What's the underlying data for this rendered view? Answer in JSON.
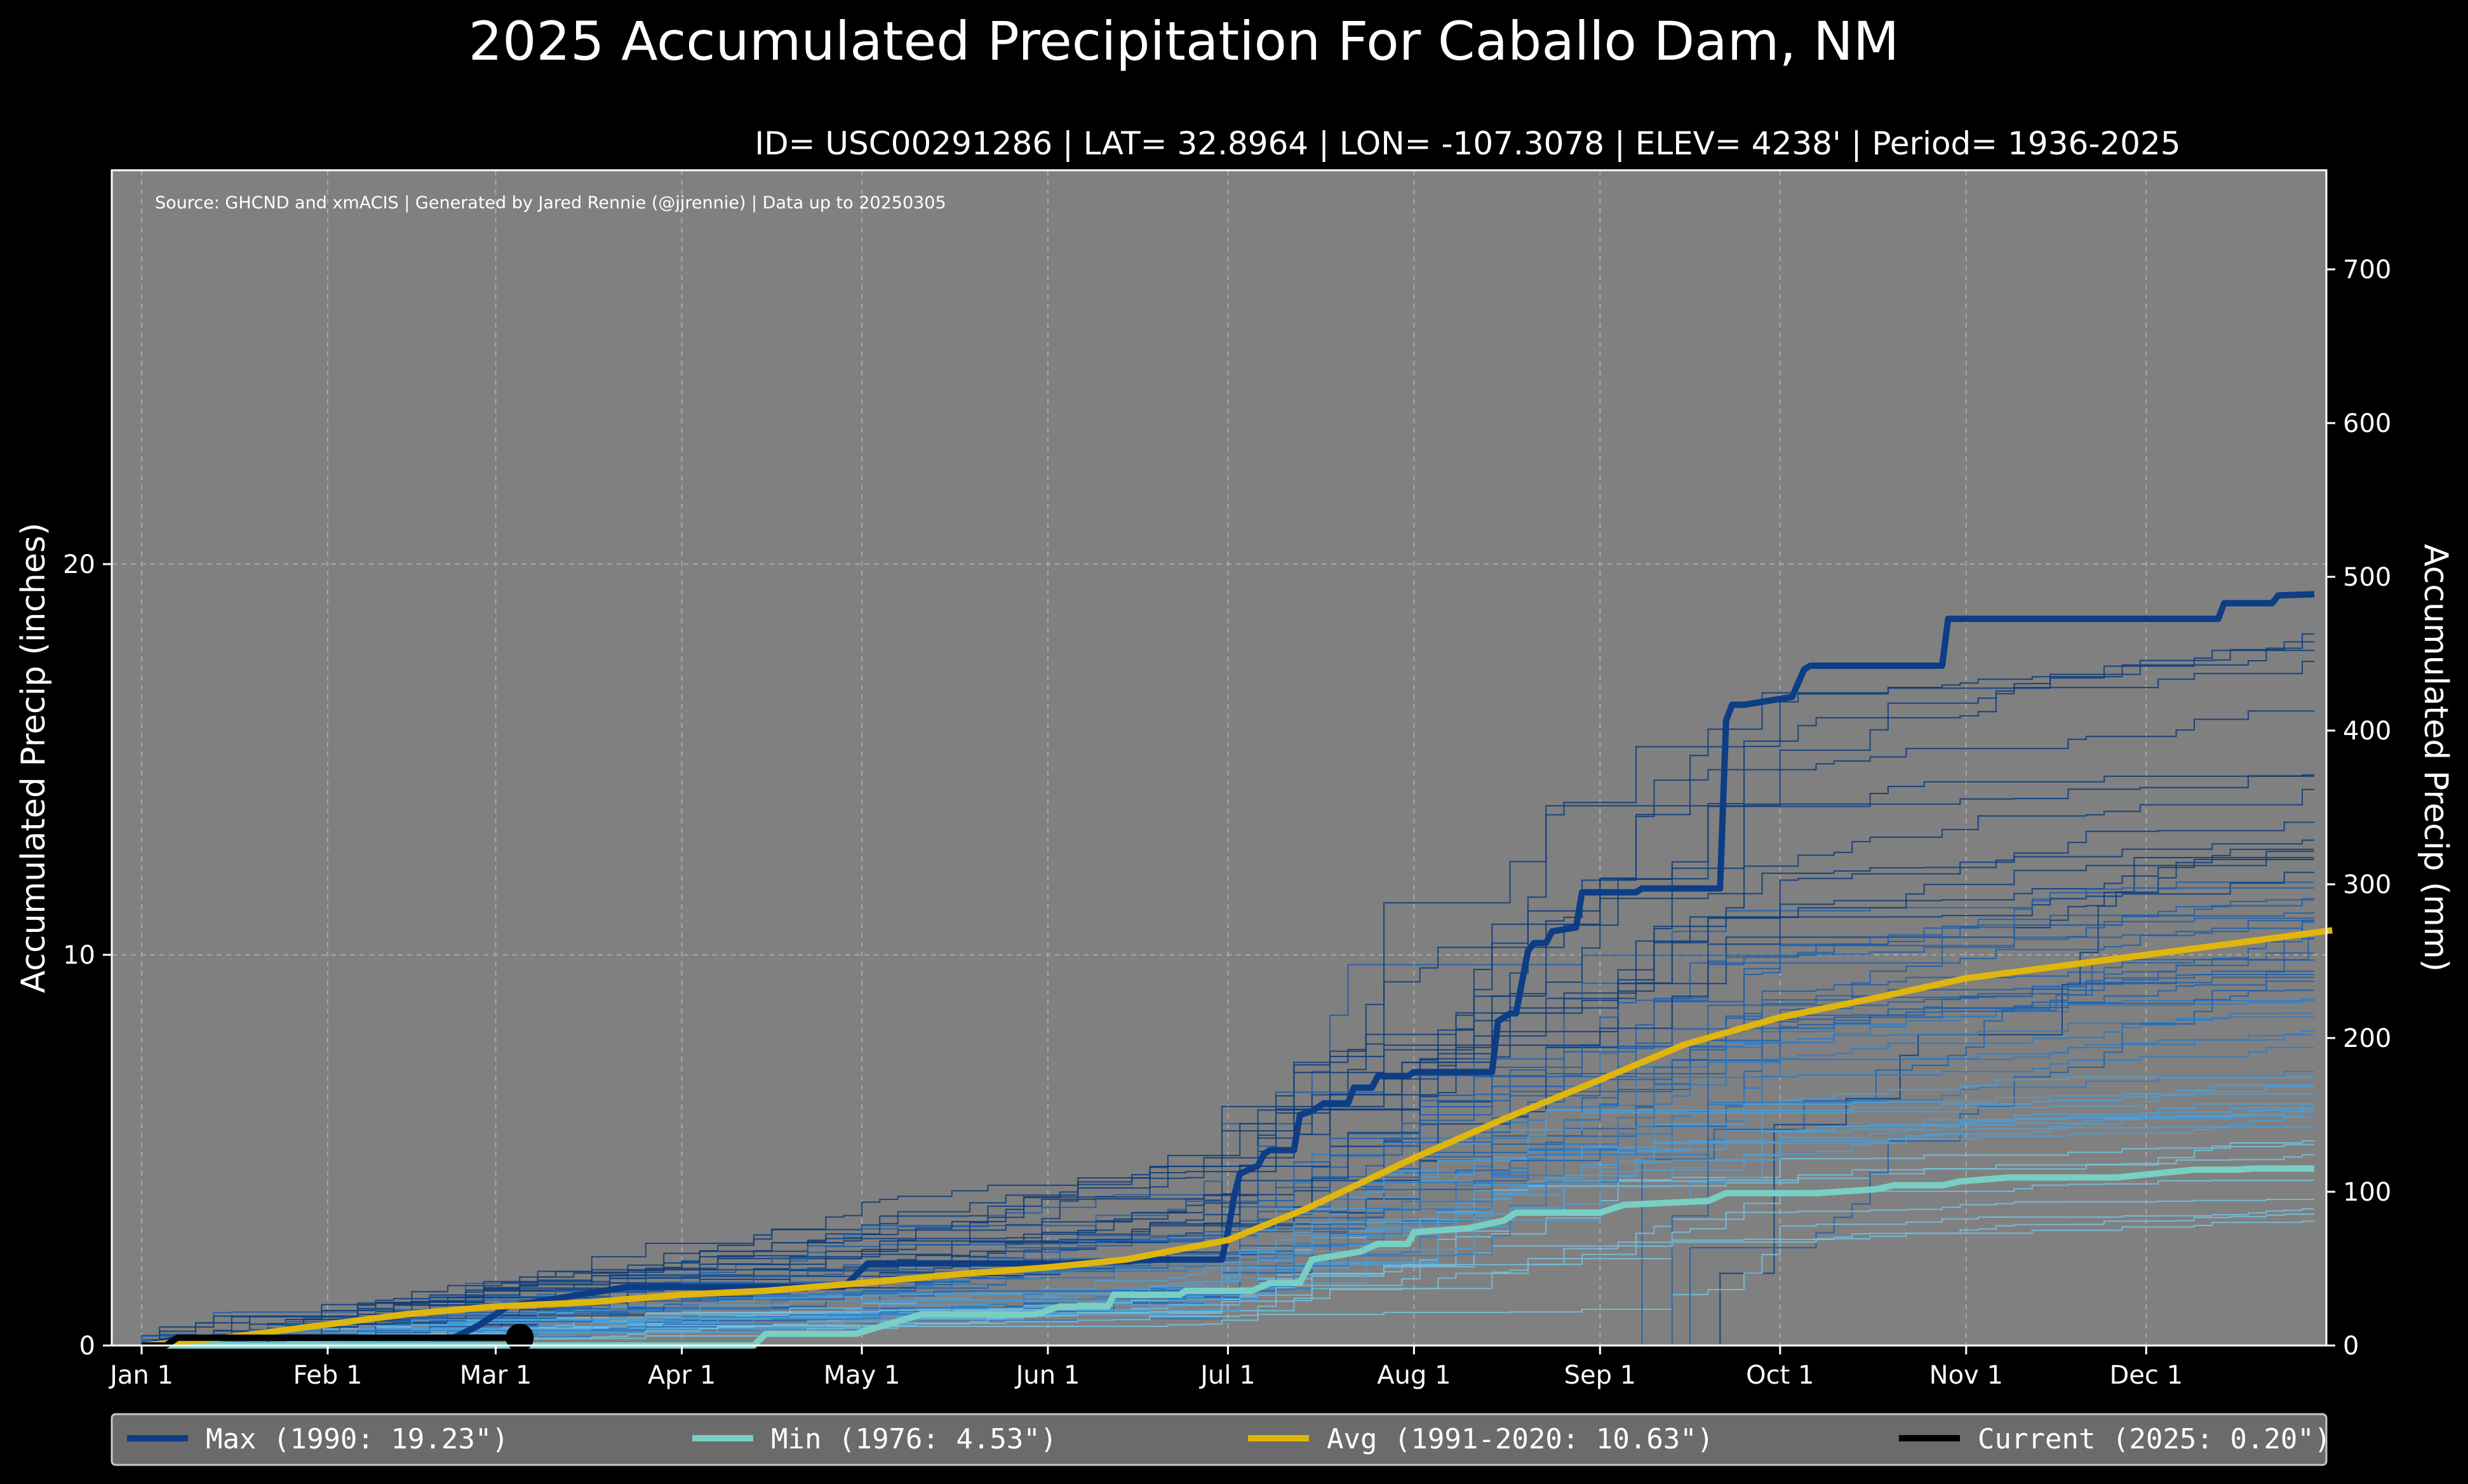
{
  "chart_data": {
    "type": "line",
    "title": "2025 Accumulated Precipitation For Caballo Dam, NM",
    "subtitle": "ID= USC00291286 | LAT= 32.8964 | LON= -107.3078 | ELEV= 4238' | Period= 1936-2025",
    "source": "Source: GHCND and xmACIS | Generated by Jared Rennie (@jjrennie) | Data up to 20250305",
    "ylabel": "Accumulated Precip (inches)",
    "ylabel_right": "Accumulated Precip (mm)",
    "xlim": [
      1,
      366
    ],
    "ylim": [
      0,
      30
    ],
    "ylim_right": [
      0,
      762
    ],
    "grid": true,
    "background": "#808080",
    "x_ticks": [
      {
        "day": 1,
        "label": "Jan 1"
      },
      {
        "day": 32,
        "label": "Feb 1"
      },
      {
        "day": 60,
        "label": "Mar 1"
      },
      {
        "day": 91,
        "label": "Apr 1"
      },
      {
        "day": 121,
        "label": "May 1"
      },
      {
        "day": 152,
        "label": "Jun 1"
      },
      {
        "day": 182,
        "label": "Jul 1"
      },
      {
        "day": 213,
        "label": "Aug 1"
      },
      {
        "day": 244,
        "label": "Sep 1"
      },
      {
        "day": 274,
        "label": "Oct 1"
      },
      {
        "day": 305,
        "label": "Nov 1"
      },
      {
        "day": 335,
        "label": "Dec 1"
      }
    ],
    "y_ticks": [
      0,
      10,
      20
    ],
    "y_ticks_right": [
      0,
      100,
      200,
      300,
      400,
      500,
      600,
      700
    ],
    "historical_years": {
      "count": 60,
      "colors": [
        "#0d3d7a",
        "#1f5fa8",
        "#2b7bc4",
        "#4a9fd8",
        "#74c0de"
      ],
      "final_range_inches": [
        2.8,
        18.5
      ]
    },
    "series": [
      {
        "name": "Max (1990:  19.23\")",
        "color": "#0d3d85",
        "x": [
          1,
          8,
          22,
          53,
          57,
          62,
          82,
          118,
          122,
          154,
          171,
          181,
          182,
          183,
          184,
          187,
          188,
          189,
          193,
          194,
          196,
          198,
          202,
          203,
          206,
          207,
          212,
          213,
          226,
          227,
          229,
          230,
          232,
          233,
          235,
          236,
          240,
          241,
          250,
          251,
          252,
          264,
          265,
          266,
          268,
          276,
          278,
          279,
          301,
          302,
          347,
          348,
          356,
          357,
          363
        ],
        "y": [
          0,
          0.2,
          0.2,
          0.2,
          0.5,
          1.0,
          1.5,
          1.5,
          2.1,
          2.1,
          2.2,
          2.2,
          2.9,
          3.8,
          4.4,
          4.6,
          4.9,
          5.0,
          5.0,
          5.9,
          6.0,
          6.2,
          6.2,
          6.6,
          6.6,
          6.9,
          6.9,
          7.0,
          7.0,
          8.3,
          8.5,
          8.5,
          10.1,
          10.3,
          10.3,
          10.6,
          10.7,
          11.6,
          11.6,
          11.7,
          11.7,
          11.7,
          16.0,
          16.4,
          16.4,
          16.6,
          17.3,
          17.4,
          17.4,
          18.6,
          18.6,
          19.0,
          19.0,
          19.2,
          19.23
        ]
      },
      {
        "name": "Min (1976:   4.53\")",
        "color": "#79cfc4",
        "x": [
          1,
          63,
          103,
          105,
          120,
          131,
          150,
          154,
          162,
          163,
          174,
          175,
          186,
          189,
          194,
          196,
          204,
          207,
          212,
          213,
          222,
          228,
          230,
          244,
          248,
          262,
          265,
          276,
          280,
          290,
          293,
          301,
          304,
          312,
          330,
          343,
          350,
          353,
          363
        ],
        "y": [
          0,
          0,
          0,
          0.3,
          0.3,
          0.8,
          0.8,
          1.0,
          1.0,
          1.3,
          1.3,
          1.4,
          1.4,
          1.6,
          1.6,
          2.2,
          2.4,
          2.6,
          2.6,
          2.9,
          3.0,
          3.2,
          3.4,
          3.4,
          3.6,
          3.7,
          3.9,
          3.9,
          3.9,
          4.0,
          4.1,
          4.1,
          4.2,
          4.3,
          4.3,
          4.5,
          4.5,
          4.53,
          4.53
        ]
      },
      {
        "name": "Avg (1991-2020:  10.63\")",
        "color": "#e0b60d",
        "x": [
          1,
          15,
          30,
          45,
          60,
          75,
          91,
          105,
          121,
          135,
          152,
          165,
          182,
          195,
          213,
          228,
          244,
          258,
          274,
          290,
          305,
          320,
          335,
          350,
          366
        ],
        "y": [
          0,
          0.2,
          0.5,
          0.8,
          1.0,
          1.1,
          1.3,
          1.4,
          1.6,
          1.8,
          2.0,
          2.2,
          2.7,
          3.5,
          4.8,
          5.8,
          6.8,
          7.7,
          8.4,
          8.9,
          9.4,
          9.7,
          10.0,
          10.3,
          10.63
        ]
      },
      {
        "name": "Current (2025:   0.20\")",
        "color": "#000000",
        "x": [
          1,
          5,
          6,
          7,
          64
        ],
        "y": [
          0,
          0,
          0.1,
          0.2,
          0.2
        ]
      }
    ]
  }
}
